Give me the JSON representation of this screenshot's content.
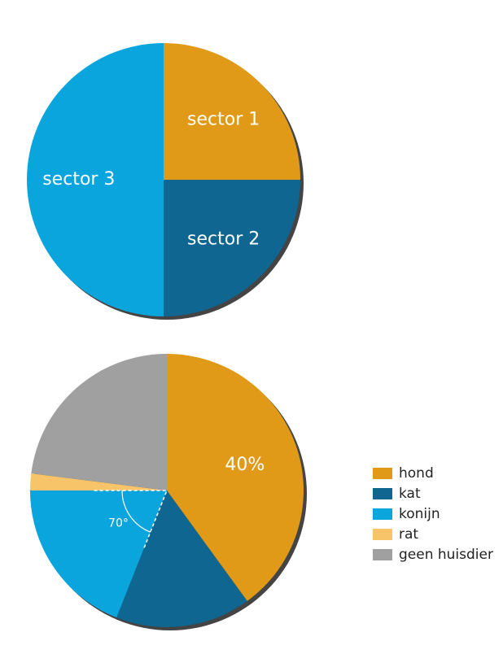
{
  "chart_data": [
    {
      "type": "pie",
      "categories": [
        "sector 1",
        "sector 2",
        "sector 3"
      ],
      "values": [
        25,
        25,
        50
      ],
      "colors": [
        "#e09a17",
        "#0f6690",
        "#0aa5dd"
      ],
      "labels": "inside"
    },
    {
      "type": "pie",
      "categories": [
        "hond",
        "kat",
        "konijn",
        "rat",
        "geen huisdier"
      ],
      "values": [
        40,
        16,
        19,
        2,
        23
      ],
      "value_labels": [
        "40%",
        null,
        null,
        null,
        null
      ],
      "colors": [
        "#e09a17",
        "#0f6690",
        "#0aa5dd",
        "#f7c469",
        "#a0a0a0"
      ],
      "annotation": "70°",
      "legend": "right"
    }
  ]
}
